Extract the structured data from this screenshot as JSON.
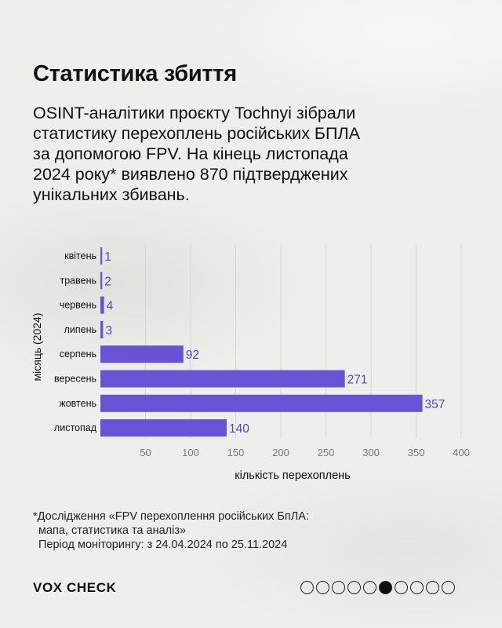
{
  "header": {
    "title": "Статистика збиття",
    "intro": "OSINT-аналітики проєкту Tochnyi зібрали статистику перехоплень російських БПЛА за допомогою FPV. На кінець листопада 2024 року* виявлено 870 підтверджених унікальних збивань."
  },
  "chart_data": {
    "type": "bar",
    "orientation": "horizontal",
    "categories": [
      "квітень",
      "травень",
      "червень",
      "липень",
      "серпень",
      "вересень",
      "жовтень",
      "листопад"
    ],
    "values": [
      1,
      2,
      4,
      3,
      92,
      271,
      357,
      140
    ],
    "xlabel": "кількість перехоплень",
    "ylabel": "місяць (2024)",
    "xlim": [
      0,
      400
    ],
    "xticks": [
      50,
      100,
      150,
      200,
      250,
      300,
      350,
      400
    ],
    "grid": true,
    "bar_color": "#6a52d6",
    "label_color": "#5a45c8"
  },
  "footnote": {
    "line1": "*Дослідження «FPV перехоплення російських БпЛА:",
    "line2": "мапа, статистика та аналіз»",
    "line3": "Період моніторингу: з 24.04.2024 по 25.11.2024"
  },
  "footer": {
    "logo": "VOX CHECK",
    "page_dots": 10,
    "active_dot": 6
  }
}
